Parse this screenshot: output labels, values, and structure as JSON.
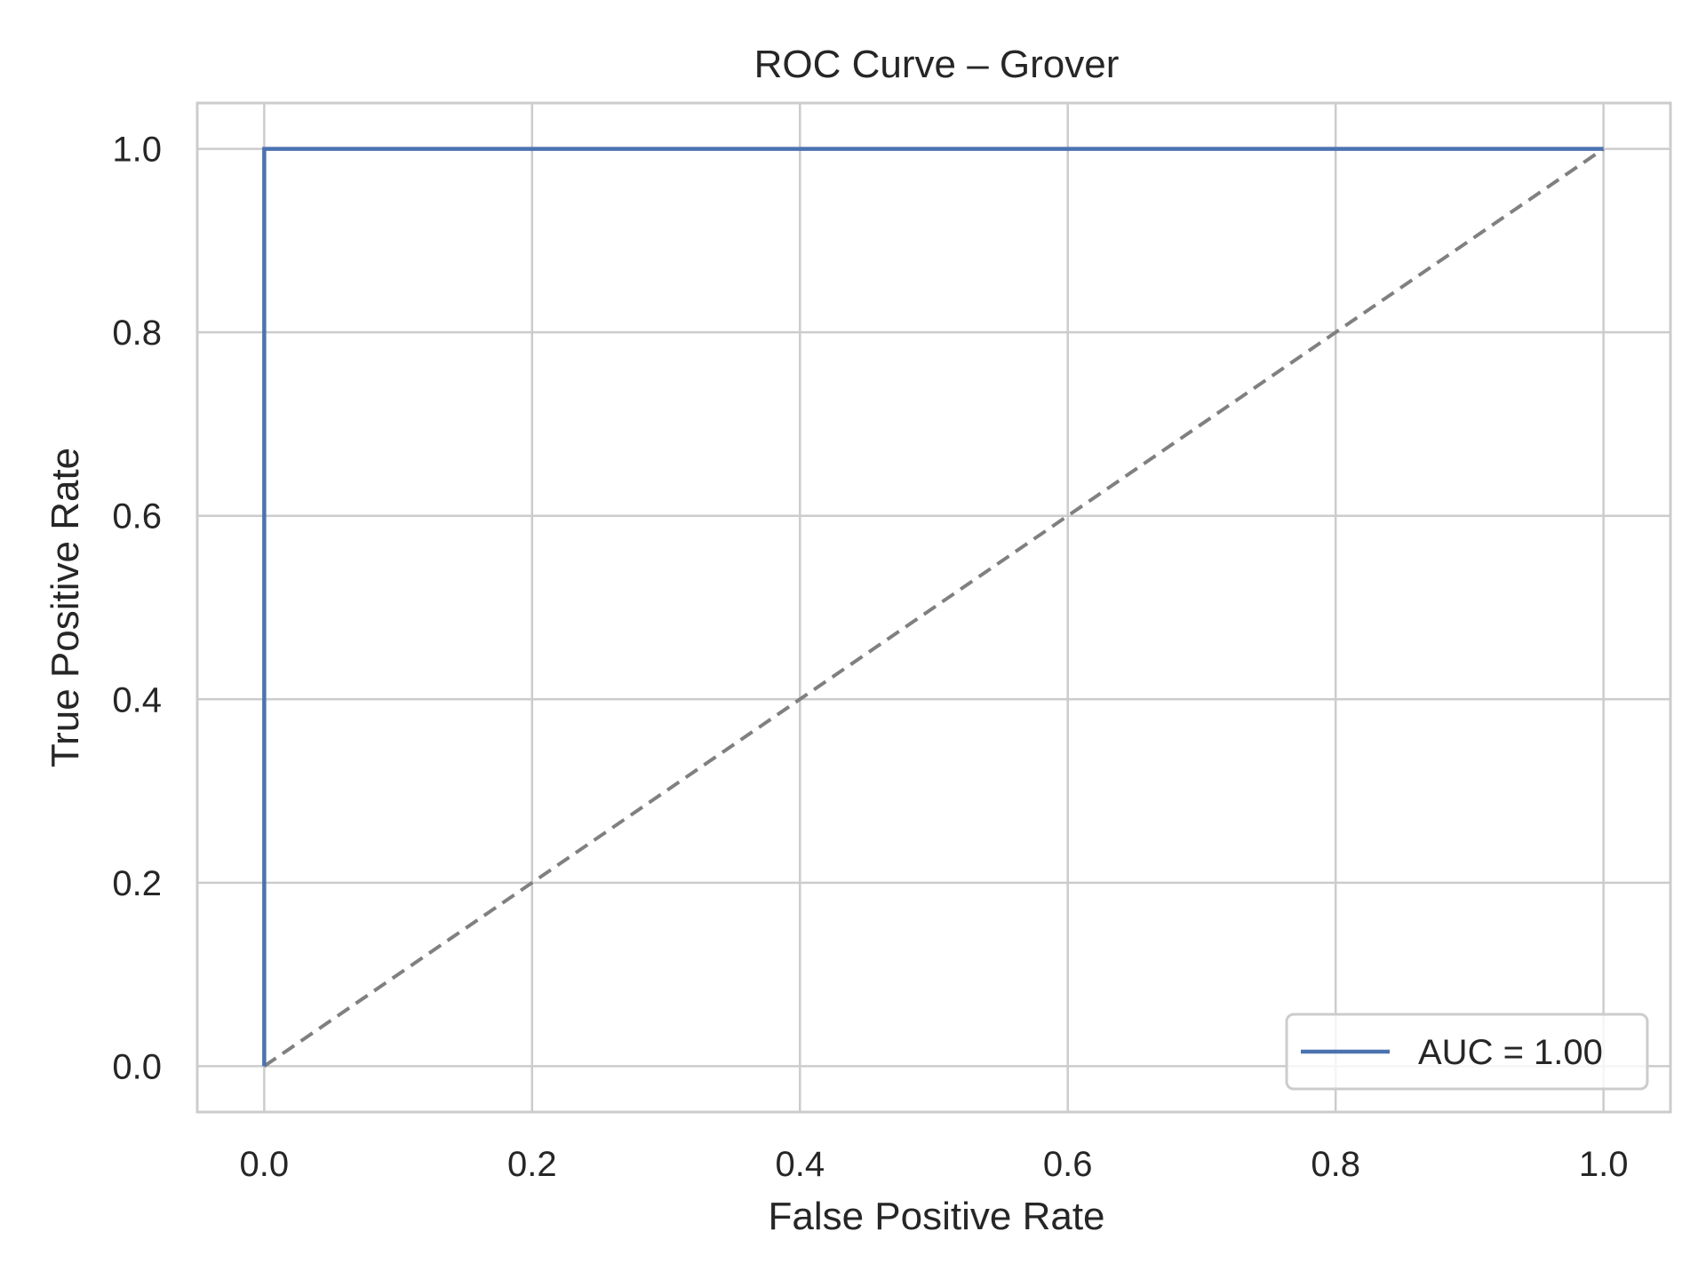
{
  "chart_data": {
    "type": "line",
    "title": "ROC Curve – Grover",
    "xlabel": "False Positive Rate",
    "ylabel": "True Positive Rate",
    "xlim": [
      -0.05,
      1.05
    ],
    "ylim": [
      -0.05,
      1.05
    ],
    "xticks": [
      0.0,
      0.2,
      0.4,
      0.6,
      0.8,
      1.0
    ],
    "yticks": [
      0.0,
      0.2,
      0.4,
      0.6,
      0.8,
      1.0
    ],
    "xtick_labels": [
      "0.0",
      "0.2",
      "0.4",
      "0.6",
      "0.8",
      "1.0"
    ],
    "ytick_labels": [
      "0.0",
      "0.2",
      "0.4",
      "0.6",
      "0.8",
      "1.0"
    ],
    "grid": true,
    "legend_position": "lower-right",
    "series": [
      {
        "name": "AUC = 1.00",
        "x": [
          0.0,
          0.0,
          1.0
        ],
        "y": [
          0.0,
          1.0,
          1.0
        ],
        "color": "#4c72b0",
        "style": "solid"
      }
    ],
    "reference_line": {
      "x": [
        0.0,
        1.0
      ],
      "y": [
        0.0,
        1.0
      ],
      "color": "#808080",
      "style": "dashed"
    }
  },
  "colors": {
    "grid": "#cccccc",
    "spine": "#cccccc",
    "text": "#262626",
    "background": "#ffffff"
  }
}
